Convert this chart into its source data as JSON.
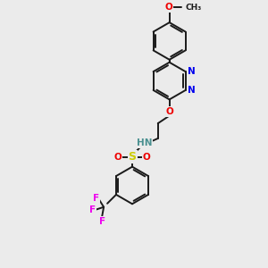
{
  "background_color": "#ebebeb",
  "bond_color": "#1a1a1a",
  "atom_colors": {
    "N": "#0000ee",
    "O": "#ee0000",
    "S": "#cccc00",
    "F": "#ee00ee",
    "NH": "#4a9090",
    "C": "#1a1a1a"
  },
  "figsize": [
    3.0,
    3.0
  ],
  "dpi": 100
}
